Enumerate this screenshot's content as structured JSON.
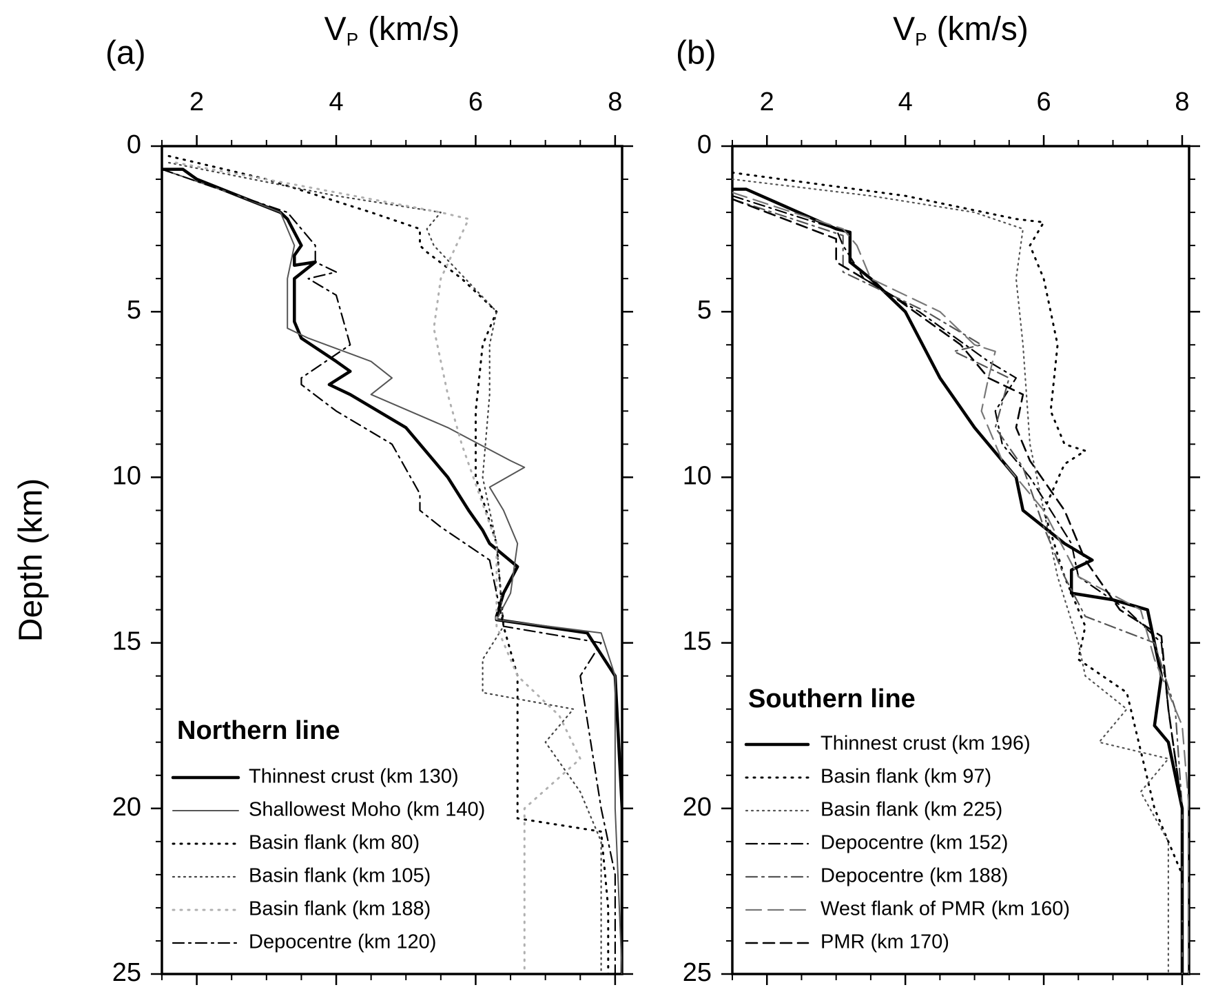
{
  "chart_data": [
    {
      "type": "line",
      "panel_label": "(a)",
      "xlabel_symbol": "V",
      "xlabel_subscript": "P",
      "xlabel_unit": "(km/s)",
      "ylabel": "Depth (km)",
      "xlim": [
        1.5,
        8.1
      ],
      "xticks": [
        2,
        4,
        6,
        8
      ],
      "xminorticks": [
        1.5,
        2,
        2.5,
        3,
        3.5,
        4,
        4.5,
        5,
        5.5,
        6,
        6.5,
        7,
        7.5,
        8
      ],
      "ylim": [
        0,
        25
      ],
      "yticks": [
        0,
        5,
        10,
        15,
        20,
        25
      ],
      "yminorticks": [
        0,
        1,
        2,
        3,
        4,
        5,
        6,
        7,
        8,
        9,
        10,
        11,
        12,
        13,
        14,
        15,
        16,
        17,
        18,
        19,
        20,
        21,
        22,
        23,
        24,
        25
      ],
      "y_inverted": true,
      "legend_title": "Northern line",
      "legend_position": "lower left",
      "series": [
        {
          "name": "Thinnest crust (km 130)",
          "color": "#000000",
          "linestyle": "solid-thick",
          "x": [
            1.5,
            1.8,
            2.0,
            2.6,
            3.2,
            3.3,
            3.5,
            3.4,
            3.4,
            3.7,
            3.4,
            3.4,
            3.5,
            4.0,
            4.2,
            3.9,
            4.2,
            5.0,
            5.6,
            5.9,
            6.1,
            6.2,
            6.6,
            6.4,
            6.3,
            6.3,
            7.6,
            8.0,
            8.1,
            8.1
          ],
          "values": [
            0.7,
            0.7,
            1.0,
            1.5,
            2.0,
            2.2,
            3.0,
            3.3,
            3.6,
            3.5,
            4.0,
            5.3,
            5.8,
            6.5,
            6.8,
            7.2,
            7.5,
            8.5,
            10.0,
            11.0,
            11.6,
            12.0,
            12.7,
            13.5,
            14.2,
            14.3,
            14.7,
            16.0,
            20,
            25
          ]
        },
        {
          "name": "Shallowest Moho (km 140)",
          "color": "#555555",
          "linestyle": "solid",
          "x": [
            1.5,
            2.6,
            3.2,
            3.4,
            3.3,
            3.3,
            3.6,
            4.5,
            4.8,
            4.5,
            5.6,
            6.5,
            6.7,
            6.2,
            6.4,
            6.6,
            6.5,
            6.3,
            7.8,
            8.0,
            8.0,
            8.1
          ],
          "values": [
            0.7,
            1.5,
            2.0,
            3.0,
            4.0,
            5.5,
            5.8,
            6.5,
            7.0,
            7.5,
            8.5,
            9.5,
            9.7,
            10.3,
            11.0,
            12.0,
            13.5,
            14.3,
            14.7,
            16.0,
            20,
            25
          ]
        },
        {
          "name": "Basin flank (km 80)",
          "color": "#000000",
          "linestyle": "dotted",
          "x": [
            1.6,
            3.0,
            4.5,
            5.2,
            5.2,
            5.3,
            5.8,
            6.3,
            6.1,
            6.0,
            6.0,
            6.3,
            6.4,
            6.6,
            6.6,
            6.6,
            7.8,
            7.9,
            7.9
          ],
          "values": [
            0.3,
            1.0,
            2.0,
            2.5,
            3.0,
            3.2,
            4.0,
            5.0,
            6.0,
            8.0,
            10.0,
            12.0,
            14.5,
            16.0,
            17.0,
            20.3,
            20.7,
            23,
            25
          ]
        },
        {
          "name": "Basin flank (km 105)",
          "color": "#444444",
          "linestyle": "dotted-fine",
          "x": [
            1.6,
            4.0,
            5.5,
            5.3,
            5.4,
            6.3,
            6.2,
            6.2,
            6.1,
            6.3,
            6.4,
            6.1,
            6.1,
            7.4,
            7.0,
            7.5,
            7.8,
            7.8
          ],
          "values": [
            0.5,
            1.5,
            2.0,
            2.5,
            3.0,
            5.0,
            6.0,
            7.5,
            10.0,
            12.0,
            14.5,
            15.5,
            16.5,
            17.0,
            18.0,
            19.5,
            21,
            25
          ]
        },
        {
          "name": "Basin flank (km 188)",
          "color": "#b0b0b0",
          "linestyle": "dotted",
          "x": [
            1.7,
            3.5,
            5.5,
            5.9,
            5.5,
            5.4,
            5.6,
            5.8,
            6.3,
            6.3,
            6.6,
            7.2,
            7.5,
            6.7,
            6.7
          ],
          "values": [
            0.5,
            1.2,
            2.0,
            2.2,
            4.0,
            5.5,
            7.5,
            9.0,
            12.0,
            14.5,
            16.0,
            17.2,
            18.5,
            20,
            25
          ]
        },
        {
          "name": "Depocentre (km 120)",
          "color": "#000000",
          "linestyle": "dashdot",
          "x": [
            1.5,
            2.6,
            3.3,
            3.7,
            3.7,
            4.0,
            3.6,
            4.0,
            4.2,
            3.5,
            3.5,
            4.0,
            4.8,
            5.2,
            5.2,
            5.5,
            6.2,
            6.4,
            7.8,
            7.5,
            7.8,
            8.0,
            8.0
          ],
          "values": [
            0.7,
            1.5,
            2.0,
            3.0,
            3.5,
            3.8,
            4.0,
            4.5,
            6.0,
            7.0,
            7.2,
            8.0,
            9.0,
            10.5,
            11.0,
            11.5,
            12.5,
            14.5,
            15.0,
            16.0,
            20,
            22,
            25
          ]
        }
      ]
    },
    {
      "type": "line",
      "panel_label": "(b)",
      "xlabel_symbol": "V",
      "xlabel_subscript": "P",
      "xlabel_unit": "(km/s)",
      "xlim": [
        1.5,
        8.1
      ],
      "xticks": [
        2,
        4,
        6,
        8
      ],
      "xminorticks": [
        1.5,
        2,
        2.5,
        3,
        3.5,
        4,
        4.5,
        5,
        5.5,
        6,
        6.5,
        7,
        7.5,
        8
      ],
      "ylim": [
        0,
        25
      ],
      "yticks": [
        0,
        5,
        10,
        15,
        20,
        25
      ],
      "yminorticks": [
        0,
        1,
        2,
        3,
        4,
        5,
        6,
        7,
        8,
        9,
        10,
        11,
        12,
        13,
        14,
        15,
        16,
        17,
        18,
        19,
        20,
        21,
        22,
        23,
        24,
        25
      ],
      "y_inverted": true,
      "legend_title": "Southern line",
      "legend_position": "lower left",
      "series": [
        {
          "name": "Thinnest crust (km 196)",
          "color": "#000000",
          "linestyle": "solid-thick",
          "x": [
            1.5,
            1.7,
            3.0,
            3.2,
            3.2,
            3.5,
            4.0,
            4.5,
            5.0,
            5.4,
            5.6,
            5.7,
            6.3,
            6.7,
            6.4,
            6.4,
            7.0,
            7.5,
            7.7,
            7.6,
            7.8,
            8.0,
            8.0
          ],
          "values": [
            1.3,
            1.3,
            2.5,
            2.6,
            3.5,
            4.0,
            5.0,
            7.0,
            8.5,
            9.5,
            10.0,
            11.0,
            12.0,
            12.5,
            12.8,
            13.5,
            13.7,
            14.0,
            16.0,
            17.5,
            18.0,
            20,
            25
          ]
        },
        {
          "name": "Basin flank (km 97)",
          "color": "#000000",
          "linestyle": "dotted",
          "x": [
            1.5,
            4.0,
            5.6,
            6.0,
            5.8,
            6.0,
            6.1,
            6.2,
            6.1,
            6.3,
            6.6,
            6.3,
            6.0,
            6.3,
            6.6,
            6.5,
            7.2,
            7.6,
            8.0,
            8.0
          ],
          "values": [
            0.8,
            1.5,
            2.2,
            2.3,
            3.0,
            4.0,
            5.0,
            6.0,
            8.0,
            9.0,
            9.2,
            9.6,
            11.0,
            13.0,
            14.5,
            15.5,
            16.5,
            20,
            22,
            25
          ]
        },
        {
          "name": "Basin flank (km 225)",
          "color": "#555555",
          "linestyle": "dotted-fine",
          "x": [
            1.5,
            3.5,
            5.0,
            5.7,
            5.6,
            5.7,
            5.8,
            6.0,
            6.2,
            6.5,
            6.6,
            7.2,
            6.8,
            7.8,
            7.4,
            7.8,
            7.8
          ],
          "values": [
            1.0,
            1.5,
            2.0,
            2.5,
            4.0,
            6.0,
            9.0,
            11.0,
            13.0,
            15.0,
            16.0,
            17.0,
            18.0,
            18.5,
            19.5,
            21,
            25
          ]
        },
        {
          "name": "Depocentre (km 152)",
          "color": "#000000",
          "linestyle": "dashdot",
          "x": [
            1.5,
            3.0,
            3.1,
            3.4,
            4.2,
            5.2,
            5.6,
            5.3,
            5.4,
            5.8,
            6.1,
            6.4,
            6.5,
            7.2,
            7.7,
            7.8,
            8.0,
            8.0
          ],
          "values": [
            1.5,
            2.5,
            3.0,
            4.0,
            5.0,
            6.5,
            7.0,
            8.0,
            9.0,
            10.0,
            11.0,
            12.0,
            13.0,
            14.0,
            15.0,
            17.0,
            20.0,
            25
          ]
        },
        {
          "name": "Depocentre (km 188)",
          "color": "#555555",
          "linestyle": "dashdot",
          "x": [
            1.5,
            3.1,
            3.1,
            4.3,
            5.1,
            4.7,
            5.5,
            5.3,
            5.7,
            6.0,
            6.3,
            6.6,
            7.6,
            7.9,
            8.0,
            8.0
          ],
          "values": [
            1.6,
            2.7,
            3.8,
            5.0,
            6.0,
            6.2,
            7.0,
            8.5,
            9.7,
            11.5,
            13.0,
            14.2,
            15.0,
            17.0,
            20,
            25
          ]
        },
        {
          "name": "West flank of PMR (km 160)",
          "color": "#777777",
          "linestyle": "long-dash",
          "x": [
            1.5,
            3.1,
            3.3,
            3.5,
            4.5,
            5.0,
            5.3,
            5.2,
            5.1,
            5.4,
            6.0,
            6.5,
            7.4,
            7.6,
            8.0,
            8.1,
            8.1
          ],
          "values": [
            1.4,
            2.5,
            3.0,
            4.0,
            5.0,
            6.0,
            6.2,
            7.0,
            8.0,
            9.5,
            11.0,
            13.0,
            14.0,
            15.5,
            17.5,
            20,
            25
          ]
        },
        {
          "name": "PMR (km 170)",
          "color": "#000000",
          "linestyle": "dashed",
          "x": [
            1.5,
            3.0,
            3.0,
            3.8,
            4.8,
            5.2,
            5.7,
            5.6,
            5.8,
            6.3,
            6.6,
            7.1,
            7.7,
            7.8,
            8.0,
            8.0
          ],
          "values": [
            1.6,
            2.8,
            3.5,
            4.5,
            6.0,
            7.0,
            7.5,
            8.5,
            9.5,
            11.0,
            12.5,
            14.0,
            14.8,
            17.0,
            20,
            25
          ]
        }
      ]
    }
  ]
}
